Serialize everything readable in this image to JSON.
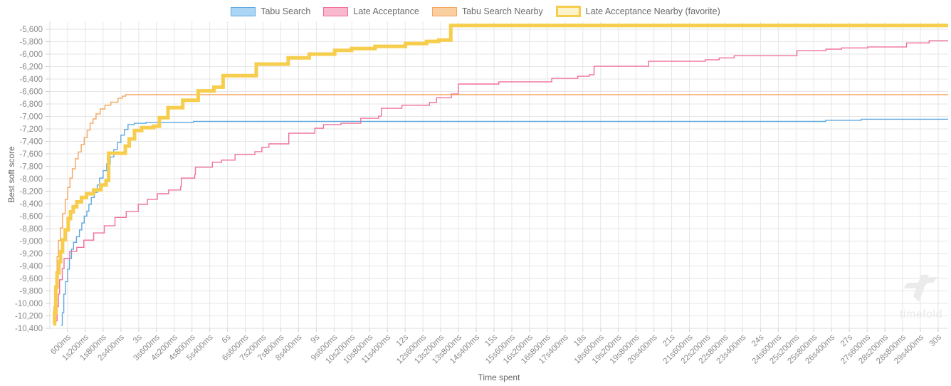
{
  "legend": [
    {
      "label": "Tabu Search",
      "fill": "#abd5f5",
      "border": "#5fa8df",
      "thick": false
    },
    {
      "label": "Late Acceptance",
      "fill": "#f8b9ce",
      "border": "#f0709a",
      "thick": false
    },
    {
      "label": "Tabu Search Nearby",
      "fill": "#facfa0",
      "border": "#f5a55f",
      "thick": false
    },
    {
      "label": "Late Acceptance Nearby (favorite)",
      "fill": "#fcf3cb",
      "border": "#f6cd4c",
      "thick": true
    }
  ],
  "watermark": {
    "text": "timefold"
  },
  "chart_data": {
    "type": "line",
    "step": "after",
    "title": "",
    "xlabel": "Time spent",
    "ylabel": "Best soft score",
    "grid": true,
    "legend_position": "top",
    "xlim_ms": [
      0,
      30350
    ],
    "ylim": [
      -10450,
      -5475
    ],
    "x_tick_ms": [
      600,
      1200,
      1800,
      2400,
      3000,
      3600,
      4200,
      4800,
      5400,
      6000,
      6600,
      7200,
      7800,
      8400,
      9000,
      9600,
      10200,
      10800,
      11400,
      12000,
      12600,
      13200,
      13800,
      14400,
      15000,
      15600,
      16200,
      16800,
      17400,
      18000,
      18600,
      19200,
      19800,
      20400,
      21000,
      21600,
      22200,
      22800,
      23400,
      24000,
      24600,
      25200,
      25800,
      26400,
      27000,
      27600,
      28200,
      28800,
      29400,
      30000
    ],
    "x_tick_labels": [
      "600ms",
      "1s200ms",
      "1s800ms",
      "2s400ms",
      "3s",
      "3s600ms",
      "4s200ms",
      "4s800ms",
      "5s400ms",
      "6s",
      "6s600ms",
      "7s200ms",
      "7s800ms",
      "8s400ms",
      "9s",
      "9s600ms",
      "10s200ms",
      "10s800ms",
      "11s400ms",
      "12s",
      "12s600ms",
      "13s200ms",
      "13s800ms",
      "14s400ms",
      "15s",
      "15s600ms",
      "16s200ms",
      "16s800ms",
      "17s400ms",
      "18s",
      "18s600ms",
      "19s200ms",
      "19s800ms",
      "20s400ms",
      "21s",
      "21s600ms",
      "22s200ms",
      "22s800ms",
      "23s400ms",
      "24s",
      "24s600ms",
      "25s200ms",
      "25s800ms",
      "26s400ms",
      "27s",
      "27s600ms",
      "28s200ms",
      "28s800ms",
      "29s400ms",
      "30s"
    ],
    "y_tick_values": [
      -5600,
      -5800,
      -6000,
      -6200,
      -6400,
      -6600,
      -6800,
      -7000,
      -7200,
      -7400,
      -7600,
      -7800,
      -8000,
      -8200,
      -8400,
      -8600,
      -8800,
      -9000,
      -9200,
      -9400,
      -9600,
      -9800,
      -10000,
      -10200,
      -10400
    ],
    "y_tick_labels": [
      "-5,600",
      "-5,800",
      "-6,000",
      "-6,200",
      "-6,400",
      "-6,600",
      "-6,800",
      "-7,000",
      "-7,200",
      "-7,400",
      "-7,600",
      "-7,800",
      "-8,000",
      "-8,200",
      "-8,400",
      "-8,600",
      "-8,800",
      "-9,000",
      "-9,200",
      "-9,400",
      "-9,600",
      "-9,800",
      "-10,000",
      "-10,200",
      "-10,400"
    ],
    "series": [
      {
        "name": "Tabu Search",
        "color": "#5fa8df",
        "width": 1.4,
        "points": [
          [
            380,
            -10350
          ],
          [
            420,
            -10150
          ],
          [
            470,
            -9850
          ],
          [
            530,
            -9650
          ],
          [
            600,
            -9450
          ],
          [
            660,
            -9280
          ],
          [
            730,
            -9130
          ],
          [
            800,
            -9020
          ],
          [
            900,
            -8930
          ],
          [
            1000,
            -8820
          ],
          [
            1080,
            -8710
          ],
          [
            1160,
            -8600
          ],
          [
            1250,
            -8520
          ],
          [
            1320,
            -8410
          ],
          [
            1400,
            -8300
          ],
          [
            1500,
            -8220
          ],
          [
            1600,
            -8100
          ],
          [
            1680,
            -7990
          ],
          [
            1800,
            -7870
          ],
          [
            1920,
            -7760
          ],
          [
            2040,
            -7650
          ],
          [
            2160,
            -7530
          ],
          [
            2280,
            -7420
          ],
          [
            2400,
            -7300
          ],
          [
            2520,
            -7210
          ],
          [
            2640,
            -7130
          ],
          [
            2850,
            -7110
          ],
          [
            3250,
            -7095
          ],
          [
            4850,
            -7080
          ],
          [
            26200,
            -7062
          ],
          [
            27400,
            -7045
          ],
          [
            30350,
            -7045
          ]
        ]
      },
      {
        "name": "Late Acceptance",
        "color": "#f0709a",
        "width": 1.4,
        "points": [
          [
            215,
            -10280
          ],
          [
            245,
            -10050
          ],
          [
            290,
            -9850
          ],
          [
            330,
            -9620
          ],
          [
            420,
            -9440
          ],
          [
            480,
            -9280
          ],
          [
            670,
            -9165
          ],
          [
            910,
            -9100
          ],
          [
            1150,
            -8985
          ],
          [
            1480,
            -8870
          ],
          [
            1840,
            -8755
          ],
          [
            2200,
            -8620
          ],
          [
            2580,
            -8525
          ],
          [
            2985,
            -8410
          ],
          [
            3295,
            -8330
          ],
          [
            3630,
            -8240
          ],
          [
            4010,
            -8180
          ],
          [
            4416,
            -8125
          ],
          [
            4440,
            -7990
          ],
          [
            4895,
            -7930
          ],
          [
            4917,
            -7815
          ],
          [
            5490,
            -7735
          ],
          [
            5800,
            -7700
          ],
          [
            6255,
            -7610
          ],
          [
            6925,
            -7565
          ],
          [
            7160,
            -7495
          ],
          [
            7400,
            -7440
          ],
          [
            8070,
            -7270
          ],
          [
            8950,
            -7190
          ],
          [
            9240,
            -7130
          ],
          [
            9835,
            -7110
          ],
          [
            10500,
            -7030
          ],
          [
            11100,
            -6995
          ],
          [
            11195,
            -6870
          ],
          [
            11890,
            -6820
          ],
          [
            12820,
            -6775
          ],
          [
            13060,
            -6700
          ],
          [
            13560,
            -6640
          ],
          [
            13800,
            -6480
          ],
          [
            15160,
            -6445
          ],
          [
            16950,
            -6390
          ],
          [
            17830,
            -6355
          ],
          [
            18215,
            -6330
          ],
          [
            18380,
            -6195
          ],
          [
            20220,
            -6115
          ],
          [
            22130,
            -6090
          ],
          [
            22605,
            -6060
          ],
          [
            23110,
            -6025
          ],
          [
            25230,
            -5945
          ],
          [
            26210,
            -5920
          ],
          [
            26735,
            -5900
          ],
          [
            27620,
            -5885
          ],
          [
            28930,
            -5820
          ],
          [
            29695,
            -5785
          ],
          [
            30350,
            -5780
          ]
        ]
      },
      {
        "name": "Tabu Search Nearby",
        "color": "#f5a55f",
        "width": 1.4,
        "points": [
          [
            100,
            -10300
          ],
          [
            140,
            -10050
          ],
          [
            175,
            -9900
          ],
          [
            205,
            -9560
          ],
          [
            245,
            -9250
          ],
          [
            290,
            -8990
          ],
          [
            360,
            -8790
          ],
          [
            430,
            -8560
          ],
          [
            520,
            -8330
          ],
          [
            600,
            -8140
          ],
          [
            680,
            -7990
          ],
          [
            760,
            -7840
          ],
          [
            860,
            -7680
          ],
          [
            960,
            -7570
          ],
          [
            1060,
            -7450
          ],
          [
            1160,
            -7340
          ],
          [
            1260,
            -7220
          ],
          [
            1360,
            -7110
          ],
          [
            1460,
            -7040
          ],
          [
            1560,
            -6960
          ],
          [
            1700,
            -6880
          ],
          [
            1860,
            -6820
          ],
          [
            2060,
            -6770
          ],
          [
            2300,
            -6710
          ],
          [
            2450,
            -6675
          ],
          [
            2560,
            -6650
          ],
          [
            30350,
            -6650
          ]
        ]
      },
      {
        "name": "Late Acceptance Nearby (favorite)",
        "color": "#f6cd4c",
        "width": 5,
        "points": [
          [
            120,
            -10330
          ],
          [
            160,
            -10150
          ],
          [
            200,
            -9740
          ],
          [
            245,
            -9510
          ],
          [
            310,
            -9330
          ],
          [
            360,
            -9170
          ],
          [
            430,
            -8980
          ],
          [
            520,
            -8820
          ],
          [
            620,
            -8640
          ],
          [
            700,
            -8530
          ],
          [
            790,
            -8450
          ],
          [
            910,
            -8370
          ],
          [
            1070,
            -8300
          ],
          [
            1240,
            -8240
          ],
          [
            1480,
            -8180
          ],
          [
            1720,
            -8100
          ],
          [
            1900,
            -8025
          ],
          [
            1985,
            -7590
          ],
          [
            2550,
            -7475
          ],
          [
            2680,
            -7360
          ],
          [
            2860,
            -7225
          ],
          [
            3100,
            -7180
          ],
          [
            3510,
            -7155
          ],
          [
            3700,
            -7020
          ],
          [
            3990,
            -6860
          ],
          [
            4490,
            -6740
          ],
          [
            5010,
            -6590
          ],
          [
            5540,
            -6530
          ],
          [
            5850,
            -6345
          ],
          [
            6970,
            -6160
          ],
          [
            8050,
            -6060
          ],
          [
            8760,
            -6000
          ],
          [
            9620,
            -5940
          ],
          [
            10190,
            -5910
          ],
          [
            10980,
            -5875
          ],
          [
            12010,
            -5830
          ],
          [
            12720,
            -5795
          ],
          [
            13130,
            -5775
          ],
          [
            13540,
            -5540
          ],
          [
            30350,
            -5540
          ]
        ]
      }
    ]
  }
}
